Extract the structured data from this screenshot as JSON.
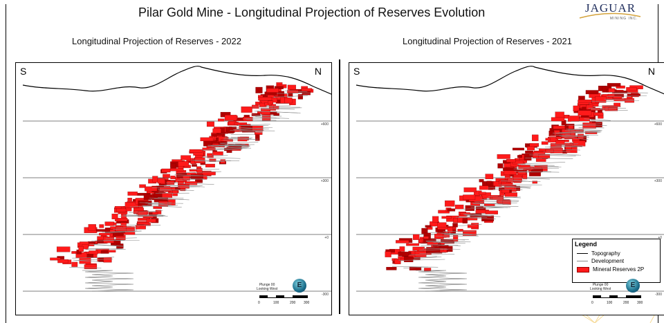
{
  "header": {
    "title": "Pilar Gold Mine - Longitudinal Projection of Reserves Evolution",
    "logo_text": "JAGUAR",
    "logo_subtext": "MINING INC."
  },
  "panels": [
    {
      "subtitle": "Longitudinal Projection of Reserves - 2022",
      "south_label": "S",
      "north_label": "N",
      "elevations": [
        "+600",
        "+300",
        "+0",
        "-300"
      ],
      "plunge_text": "Plunge 00",
      "looking_text": "Looking West",
      "compass_letter": "E",
      "scale_labels": [
        "0",
        "100",
        "200",
        "300"
      ]
    },
    {
      "subtitle": "Longitudinal Projection of Reserves - 2021",
      "south_label": "S",
      "north_label": "N",
      "elevations": [
        "+600",
        "+300",
        "+0",
        "-300"
      ],
      "plunge_text": "Plunge 00",
      "looking_text": "Looking West",
      "compass_letter": "E",
      "scale_labels": [
        "0",
        "100",
        "200",
        "300"
      ]
    }
  ],
  "legend": {
    "title": "Legend",
    "items": [
      {
        "label": "Topography",
        "symbol": "black-line"
      },
      {
        "label": "Development",
        "symbol": "gray-line"
      },
      {
        "label": "Mineral Reserves 2P",
        "symbol": "red-fill"
      }
    ]
  },
  "colors": {
    "reserves": "#ff1a1a",
    "reserves_dark": "#b00000",
    "development": "#8a8a8a",
    "topography": "#000000",
    "logo": "#1f2d5c",
    "sun_lines": "#f5d58a"
  }
}
